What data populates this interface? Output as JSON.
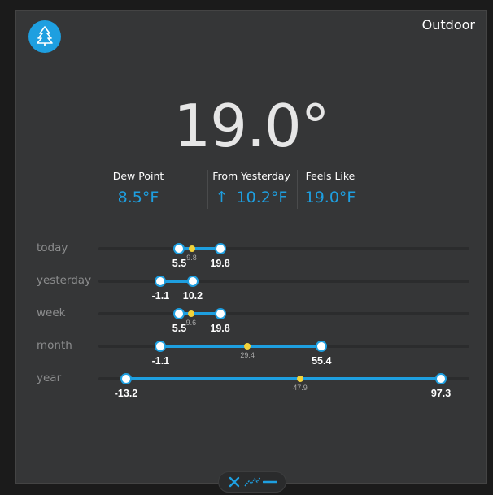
{
  "widget": {
    "title": "Outdoor",
    "icon": "tree-icon",
    "accent_color": "#1e9fe0",
    "avg_color": "#f1d23a",
    "temperature": "19.0°"
  },
  "stats": [
    {
      "label": "Dew Point",
      "value": "8.5°F",
      "arrow": ""
    },
    {
      "label": "From Yesterday",
      "value": "10.2°F",
      "arrow": "↑"
    },
    {
      "label": "Feels Like",
      "value": "19.0°F",
      "arrow": ""
    }
  ],
  "ranges": [
    {
      "label": "today",
      "low": "5.5",
      "high": "19.8",
      "avg": "9.8"
    },
    {
      "label": "yesterday",
      "low": "-1.1",
      "high": "10.2",
      "avg": ""
    },
    {
      "label": "week",
      "low": "5.5",
      "high": "19.8",
      "avg": "9.6"
    },
    {
      "label": "month",
      "low": "-1.1",
      "high": "55.4",
      "avg": "29.4"
    },
    {
      "label": "year",
      "low": "-13.2",
      "high": "97.3",
      "avg": "47.9"
    }
  ],
  "toolbar": {
    "buttons": [
      "close-icon",
      "chart-line-icon",
      "minus-icon"
    ]
  }
}
